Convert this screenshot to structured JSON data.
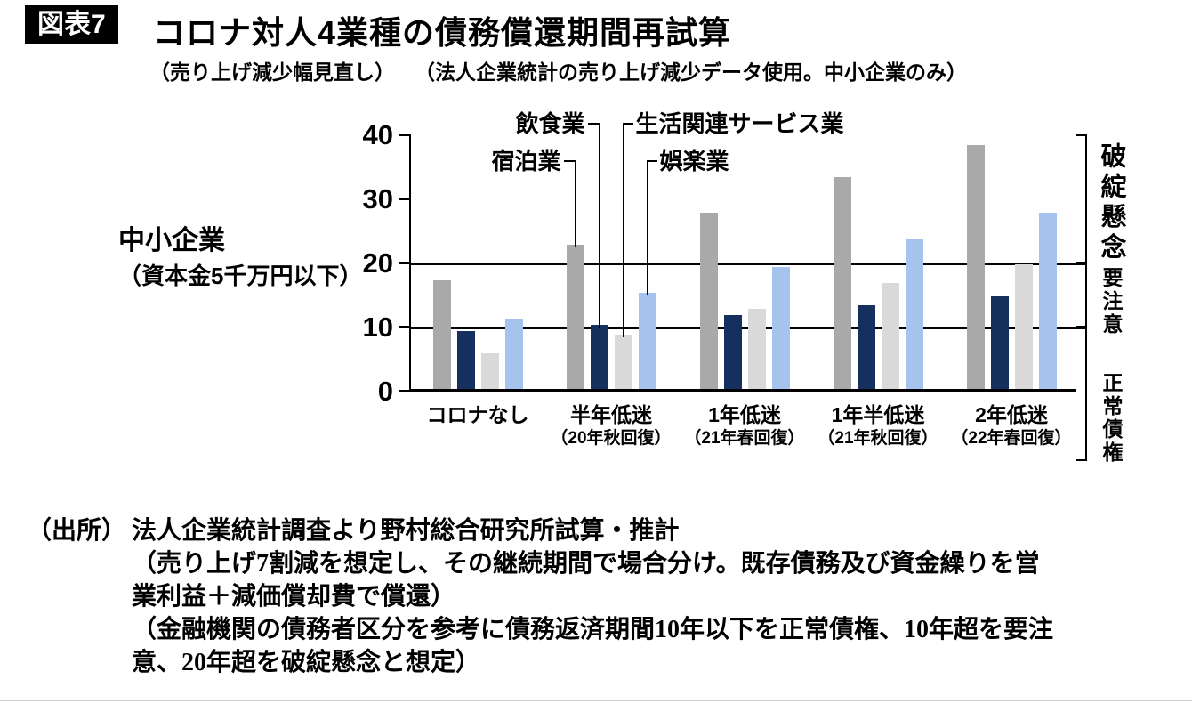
{
  "header": {
    "badge": "図表7",
    "title": "コロナ対人4業種の債務償還期間再試算",
    "subtitle_left": "（売り上げ減少幅見直し）",
    "subtitle_right": "（法人企業統計の売り上げ減少データ使用。中小企業のみ）"
  },
  "side_label": {
    "line1": "中小企業",
    "line2": "（資本金5千万円以下）"
  },
  "chart_data": {
    "type": "bar",
    "title": "コロナ対人4業種の債務償還期間再試算",
    "xlabel": "",
    "ylabel": "",
    "ylim": [
      0,
      40
    ],
    "yticks": [
      0,
      10,
      20,
      30,
      40
    ],
    "reference_lines": [
      10,
      20
    ],
    "grid": false,
    "legend_position": "annotations-above-bars",
    "categories": [
      {
        "line1": "コロナなし",
        "line2": ""
      },
      {
        "line1": "半年低迷",
        "line2": "（20年秋回復）"
      },
      {
        "line1": "1年低迷",
        "line2": "（21年春回復）"
      },
      {
        "line1": "1年半低迷",
        "line2": "（21年秋回復）"
      },
      {
        "line1": "2年低迷",
        "line2": "（22年春回復）"
      }
    ],
    "series": [
      {
        "name": "宿泊業",
        "color": "#a9a9a9",
        "values": [
          17,
          22.5,
          27.5,
          33,
          38
        ]
      },
      {
        "name": "飲食業",
        "color": "#16305e",
        "values": [
          9,
          10,
          11.5,
          13,
          14.5
        ]
      },
      {
        "name": "生活関連サービス業",
        "color": "#d9d9d9",
        "values": [
          5.5,
          8.5,
          12.5,
          16.5,
          19.5
        ]
      },
      {
        "name": "娯楽業",
        "color": "#a6c3ee",
        "values": [
          11,
          15,
          19,
          23.5,
          27.5
        ]
      }
    ],
    "annotations": [
      {
        "label": "宿泊業",
        "series": 0,
        "group": 1,
        "row": 2,
        "side": "left"
      },
      {
        "label": "飲食業",
        "series": 1,
        "group": 1,
        "row": 1,
        "side": "left"
      },
      {
        "label": "生活関連サービス業",
        "series": 2,
        "group": 1,
        "row": 1,
        "side": "right"
      },
      {
        "label": "娯楽業",
        "series": 3,
        "group": 1,
        "row": 2,
        "side": "right"
      }
    ],
    "right_zones": [
      "破綻懸念",
      "要注意",
      "正常債権"
    ]
  },
  "source": {
    "label": "（出所）",
    "lines": [
      "法人企業統計調査より野村総合研究所試算・推計",
      "（売り上げ7割減を想定し、その継続期間で場合分け。既存債務及び資金繰りを営",
      "業利益＋減価償却費で償還）",
      "（金融機関の債務者区分を参考に債務返済期間10年以下を正常債権、10年超を要注",
      "意、20年超を破綻懸念と想定）"
    ]
  }
}
